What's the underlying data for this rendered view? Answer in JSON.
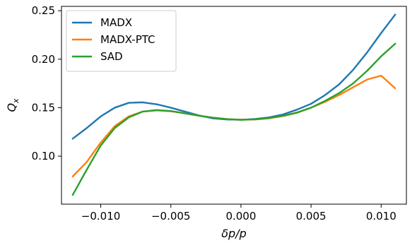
{
  "chart_data": {
    "type": "line",
    "xlabel": "δp/p",
    "ylabel": "Q",
    "ylabel_sub": "x",
    "xlim": [
      -0.0128,
      0.0118
    ],
    "ylim": [
      0.0505,
      0.2545
    ],
    "x_ticks": [
      -0.01,
      -0.005,
      0.0,
      0.005,
      0.01
    ],
    "x_tick_labels": [
      "−0.010",
      "−0.005",
      "0.000",
      "0.005",
      "0.010"
    ],
    "y_ticks": [
      0.1,
      0.15,
      0.2,
      0.25
    ],
    "y_tick_labels": [
      "0.10",
      "0.15",
      "0.20",
      "0.25"
    ],
    "grid": false,
    "legend_position": "top-left",
    "x": [
      -0.012,
      -0.011,
      -0.01,
      -0.009,
      -0.008,
      -0.007,
      -0.006,
      -0.005,
      -0.004,
      -0.003,
      -0.002,
      -0.001,
      0.0,
      0.001,
      0.002,
      0.003,
      0.004,
      0.005,
      0.006,
      0.007,
      0.008,
      0.009,
      0.01,
      0.011
    ],
    "series": [
      {
        "name": "MADX",
        "color": "#1f77b4",
        "values": [
          0.118,
          0.129,
          0.141,
          0.15,
          0.155,
          0.1555,
          0.1535,
          0.15,
          0.146,
          0.142,
          0.139,
          0.1378,
          0.1375,
          0.1383,
          0.14,
          0.143,
          0.148,
          0.154,
          0.163,
          0.174,
          0.189,
          0.207,
          0.227,
          0.246
        ]
      },
      {
        "name": "MADX-PTC",
        "color": "#ff7f0e",
        "values": [
          0.079,
          0.094,
          0.114,
          0.131,
          0.141,
          0.146,
          0.1472,
          0.1463,
          0.1442,
          0.1417,
          0.1397,
          0.1382,
          0.1375,
          0.1378,
          0.139,
          0.1413,
          0.1447,
          0.15,
          0.156,
          0.163,
          0.171,
          0.179,
          0.183,
          0.17
        ]
      },
      {
        "name": "SAD",
        "color": "#2ca02c",
        "values": [
          0.06,
          0.086,
          0.111,
          0.129,
          0.14,
          0.146,
          0.1475,
          0.1465,
          0.1442,
          0.1417,
          0.1397,
          0.1382,
          0.1375,
          0.138,
          0.1393,
          0.1416,
          0.145,
          0.15,
          0.157,
          0.165,
          0.175,
          0.188,
          0.203,
          0.216
        ]
      }
    ]
  }
}
